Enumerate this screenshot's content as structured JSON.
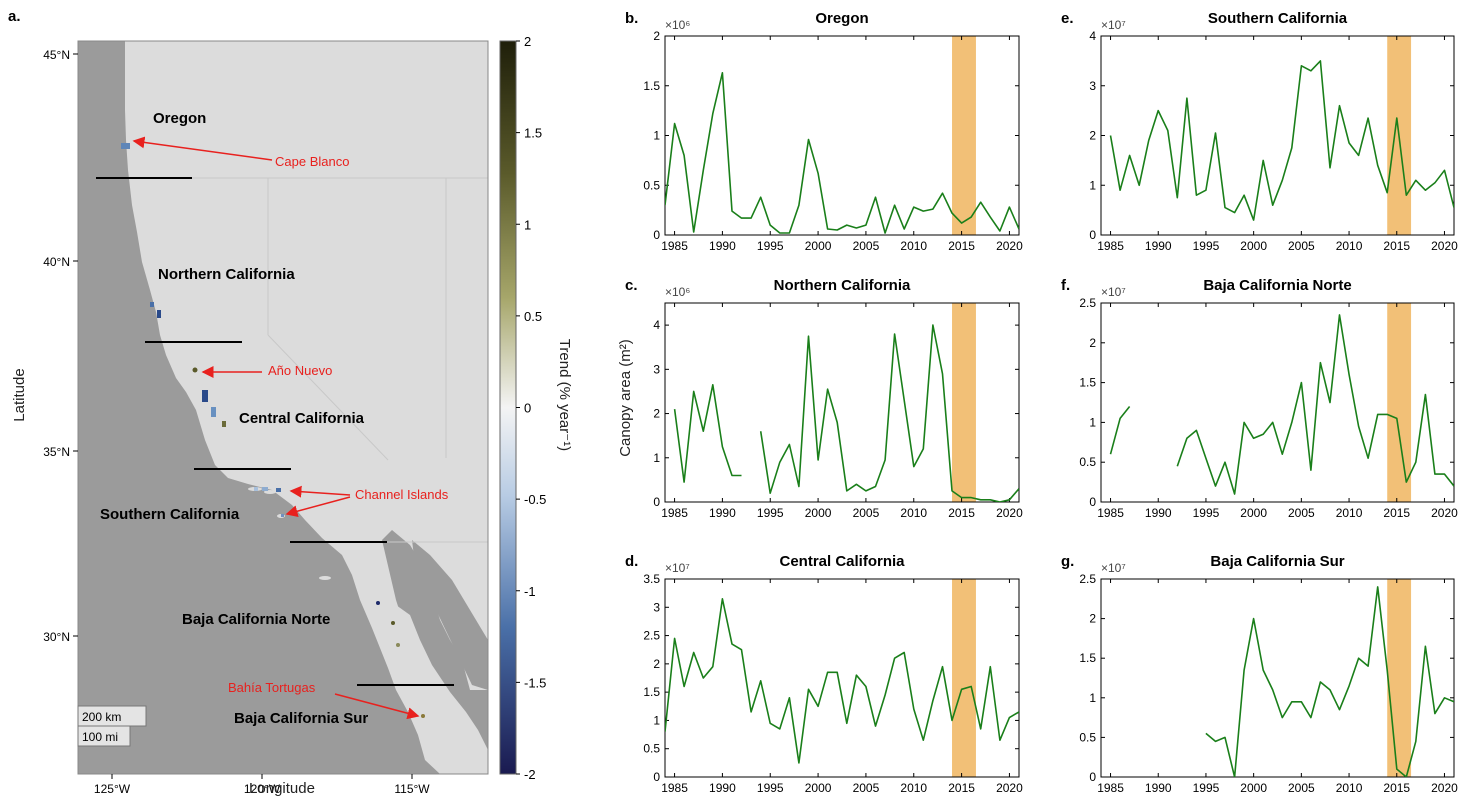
{
  "colors": {
    "ocean": "#9b9b9b",
    "land": "#dcdcdc",
    "line": "#1a7f1a",
    "highlight": "#f2c077",
    "annotation": "#e8211e"
  },
  "map": {
    "panel": "a.",
    "xlabel": "Longitude",
    "ylabel": "Latitude",
    "x_ticks": [
      "125°W",
      "120°W",
      "115°W"
    ],
    "y_ticks": [
      "45°N",
      "40°N",
      "35°N",
      "30°N"
    ],
    "colorbar_label": "Trend (% year⁻¹)",
    "colorbar_ticks": [
      "2",
      "1.5",
      "1",
      "0.5",
      "0",
      "-0.5",
      "-1",
      "-1.5",
      "-2"
    ],
    "regions": [
      "Oregon",
      "Northern California",
      "Central California",
      "Southern California",
      "Baja California Norte",
      "Baja California Sur"
    ],
    "annotations": [
      "Cape Blanco",
      "Año Nuevo",
      "Channel Islands",
      "Bahía Tortugas"
    ],
    "scale": [
      "200 km",
      "100 mi"
    ]
  },
  "shared": {
    "ylabel": "Canopy area (m²)",
    "x_ticks": [
      1985,
      1990,
      1995,
      2000,
      2005,
      2010,
      2015,
      2020
    ],
    "xlim": [
      1984,
      2021
    ],
    "highlight_years": [
      2014,
      2016.5
    ]
  },
  "chart_data": [
    {
      "panel": "b.",
      "title": "Oregon",
      "type": "line",
      "multiplier": "×10⁶",
      "ylim": [
        0,
        2
      ],
      "y_ticks": [
        "0",
        "0.5",
        "1",
        "1.5",
        "2"
      ],
      "x": [
        1984,
        1985,
        1986,
        1987,
        1988,
        1989,
        1990,
        1991,
        1992,
        1993,
        1994,
        1995,
        1996,
        1997,
        1998,
        1999,
        2000,
        2001,
        2002,
        2003,
        2004,
        2005,
        2006,
        2007,
        2008,
        2009,
        2010,
        2011,
        2012,
        2013,
        2014,
        2015,
        2016,
        2017,
        2018,
        2019,
        2020,
        2021
      ],
      "y": [
        0.3,
        1.12,
        0.8,
        0.03,
        0.65,
        1.22,
        1.63,
        0.24,
        0.17,
        0.17,
        0.38,
        0.1,
        0.02,
        0.02,
        0.3,
        0.96,
        0.62,
        0.06,
        0.05,
        0.1,
        0.07,
        0.1,
        0.38,
        0.02,
        0.3,
        0.06,
        0.28,
        0.24,
        0.26,
        0.42,
        0.22,
        0.12,
        0.18,
        0.33,
        0.18,
        0.04,
        0.28,
        0.06
      ]
    },
    {
      "panel": "c.",
      "title": "Northern California",
      "type": "line",
      "multiplier": "×10⁶",
      "ylim": [
        0,
        4.5
      ],
      "y_ticks": [
        "0",
        "1",
        "2",
        "3",
        "4"
      ],
      "x": [
        1984,
        1985,
        1986,
        1987,
        1988,
        1989,
        1990,
        1991,
        1992,
        1993,
        1994,
        1995,
        1996,
        1997,
        1998,
        1999,
        2000,
        2001,
        2002,
        2003,
        2004,
        2005,
        2006,
        2007,
        2008,
        2009,
        2010,
        2011,
        2012,
        2013,
        2014,
        2015,
        2016,
        2017,
        2018,
        2019,
        2020,
        2021
      ],
      "y": [
        null,
        2.1,
        0.45,
        2.5,
        1.6,
        2.65,
        1.25,
        0.6,
        0.6,
        null,
        1.6,
        0.2,
        0.9,
        1.3,
        0.35,
        3.75,
        0.95,
        2.55,
        1.8,
        0.25,
        0.4,
        0.25,
        0.35,
        0.95,
        3.8,
        2.3,
        0.8,
        1.2,
        4.0,
        2.9,
        0.25,
        0.1,
        0.1,
        0.05,
        0.05,
        0.0,
        0.05,
        0.3
      ]
    },
    {
      "panel": "d.",
      "title": "Central California",
      "type": "line",
      "multiplier": "×10⁷",
      "ylim": [
        0,
        3.5
      ],
      "y_ticks": [
        "0",
        "0.5",
        "1",
        "1.5",
        "2",
        "2.5",
        "3",
        "3.5"
      ],
      "x": [
        1984,
        1985,
        1986,
        1987,
        1988,
        1989,
        1990,
        1991,
        1992,
        1993,
        1994,
        1995,
        1996,
        1997,
        1998,
        1999,
        2000,
        2001,
        2002,
        2003,
        2004,
        2005,
        2006,
        2007,
        2008,
        2009,
        2010,
        2011,
        2012,
        2013,
        2014,
        2015,
        2016,
        2017,
        2018,
        2019,
        2020,
        2021
      ],
      "y": [
        0.8,
        2.45,
        1.6,
        2.2,
        1.75,
        1.95,
        3.15,
        2.35,
        2.25,
        1.15,
        1.7,
        0.95,
        0.85,
        1.4,
        0.25,
        1.55,
        1.25,
        1.85,
        1.85,
        0.95,
        1.8,
        1.6,
        0.9,
        1.45,
        2.1,
        2.2,
        1.2,
        0.65,
        1.35,
        1.95,
        1.0,
        1.55,
        1.6,
        0.85,
        1.95,
        0.65,
        1.05,
        1.15
      ]
    },
    {
      "panel": "e.",
      "title": "Southern California",
      "type": "line",
      "multiplier": "×10⁷",
      "ylim": [
        0,
        4
      ],
      "y_ticks": [
        "0",
        "1",
        "2",
        "3",
        "4"
      ],
      "x": [
        1985,
        1986,
        1987,
        1988,
        1989,
        1990,
        1991,
        1992,
        1993,
        1994,
        1995,
        1996,
        1997,
        1998,
        1999,
        2000,
        2001,
        2002,
        2003,
        2004,
        2005,
        2006,
        2007,
        2008,
        2009,
        2010,
        2011,
        2012,
        2013,
        2014,
        2015,
        2016,
        2017,
        2018,
        2019,
        2020,
        2021
      ],
      "y": [
        2.0,
        0.9,
        1.6,
        1.0,
        1.9,
        2.5,
        2.1,
        0.75,
        2.75,
        0.8,
        0.9,
        2.05,
        0.55,
        0.45,
        0.8,
        0.3,
        1.5,
        0.6,
        1.1,
        1.75,
        3.4,
        3.3,
        3.5,
        1.35,
        2.6,
        1.85,
        1.6,
        2.35,
        1.4,
        0.85,
        2.35,
        0.8,
        1.1,
        0.9,
        1.05,
        1.3,
        0.55
      ]
    },
    {
      "panel": "f.",
      "title": "Baja California Norte",
      "type": "line",
      "multiplier": "×10⁷",
      "ylim": [
        0,
        2.5
      ],
      "y_ticks": [
        "0",
        "0.5",
        "1",
        "1.5",
        "2",
        "2.5"
      ],
      "x": [
        1985,
        1986,
        1987,
        1988,
        1989,
        1990,
        1991,
        1992,
        1993,
        1994,
        1995,
        1996,
        1997,
        1998,
        1999,
        2000,
        2001,
        2002,
        2003,
        2004,
        2005,
        2006,
        2007,
        2008,
        2009,
        2010,
        2011,
        2012,
        2013,
        2014,
        2015,
        2016,
        2017,
        2018,
        2019,
        2020,
        2021
      ],
      "y": [
        0.6,
        1.05,
        1.2,
        null,
        null,
        null,
        null,
        0.45,
        0.8,
        0.9,
        0.55,
        0.2,
        0.5,
        0.1,
        1.0,
        0.8,
        0.85,
        1.0,
        0.6,
        1.0,
        1.5,
        0.4,
        1.75,
        1.25,
        2.35,
        1.6,
        0.95,
        0.55,
        1.1,
        1.1,
        1.05,
        0.25,
        0.5,
        1.35,
        0.35,
        0.35,
        0.2
      ]
    },
    {
      "panel": "g.",
      "title": "Baja California Sur",
      "type": "line",
      "multiplier": "×10⁷",
      "ylim": [
        0,
        2.5
      ],
      "y_ticks": [
        "0",
        "0.5",
        "1",
        "1.5",
        "2",
        "2.5"
      ],
      "x": [
        1995,
        1996,
        1997,
        1998,
        1999,
        2000,
        2001,
        2002,
        2003,
        2004,
        2005,
        2006,
        2007,
        2008,
        2009,
        2010,
        2011,
        2012,
        2013,
        2014,
        2015,
        2016,
        2017,
        2018,
        2019,
        2020,
        2021
      ],
      "y": [
        0.55,
        0.45,
        0.5,
        0.0,
        1.35,
        2.0,
        1.35,
        1.1,
        0.75,
        0.95,
        0.95,
        0.75,
        1.2,
        1.1,
        0.85,
        1.15,
        1.5,
        1.4,
        2.4,
        1.35,
        0.1,
        0.0,
        0.45,
        1.65,
        0.8,
        1.0,
        0.95
      ]
    }
  ]
}
